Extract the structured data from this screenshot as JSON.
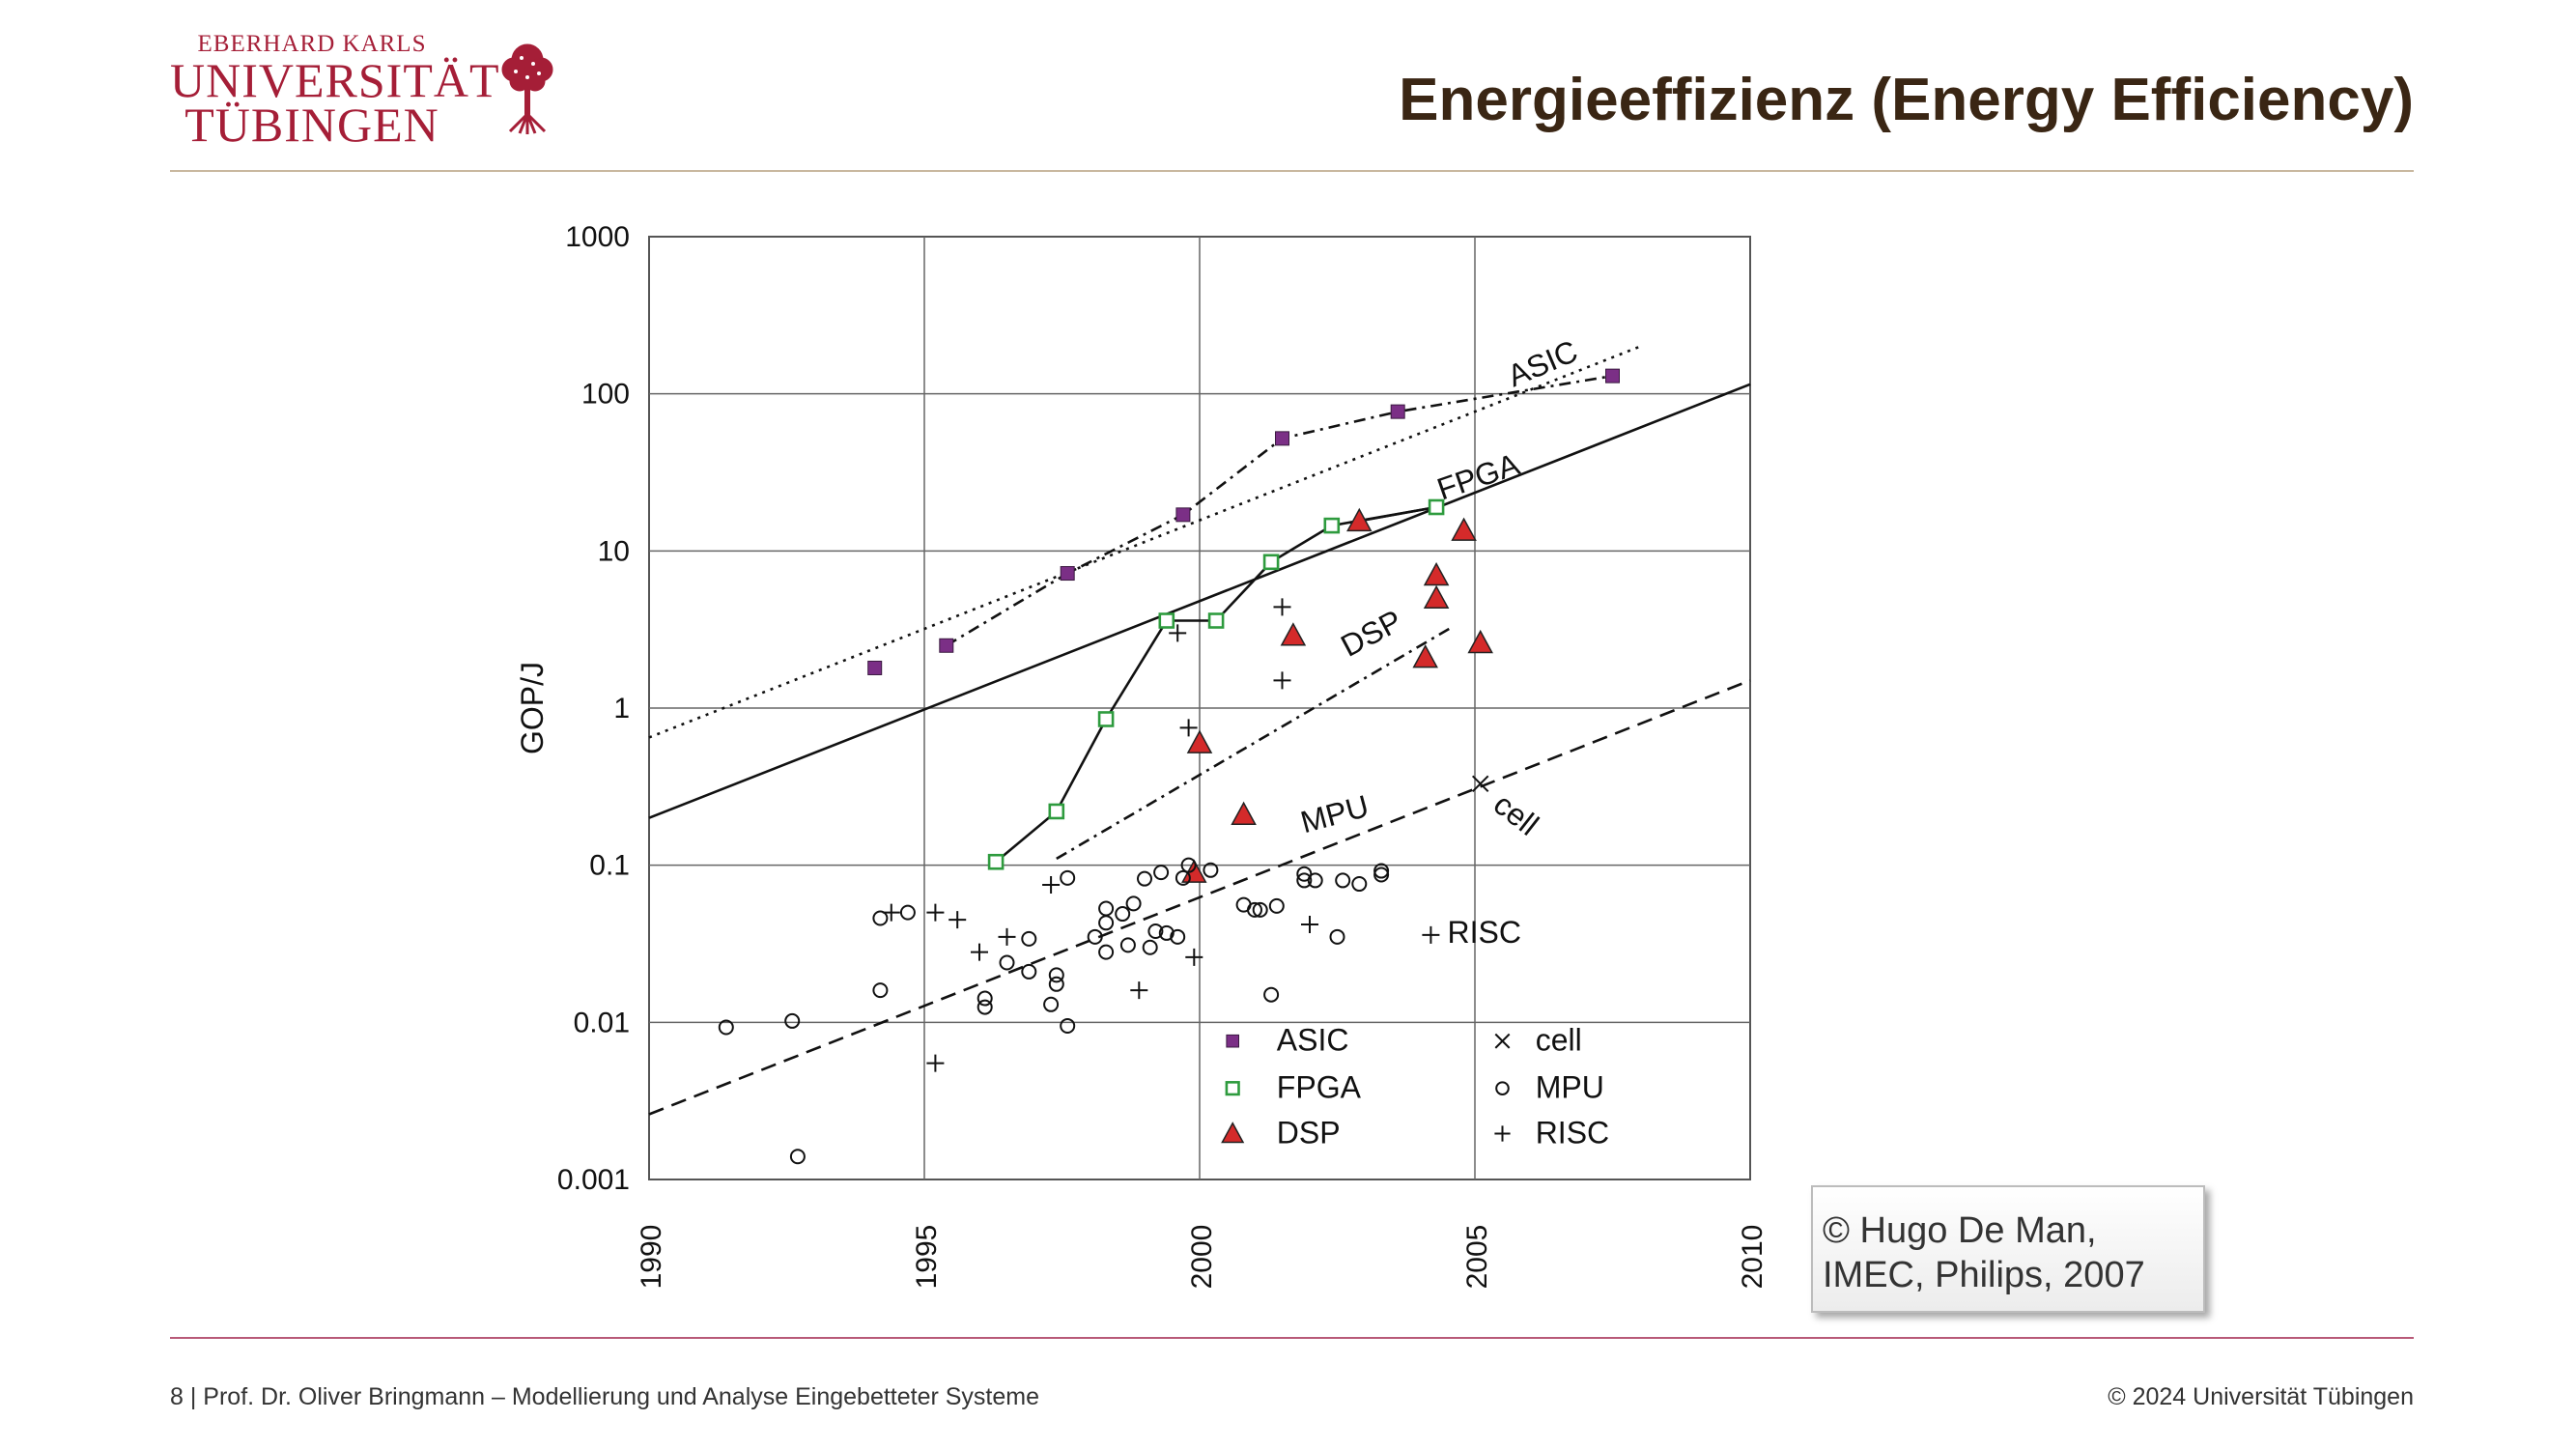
{
  "logo": {
    "top": "EBERHARD KARLS",
    "line1": "UNIVERSITÄT",
    "line2": "TÜBINGEN",
    "icon": "tree-icon"
  },
  "title": "Energieeffizienz (Energy Efficiency)",
  "footer": {
    "left": "8 | Prof. Dr. Oliver Bringmann – Modellierung und Analyse Eingebetteter Systeme",
    "right": "© 2024 Universität Tübingen"
  },
  "credit": {
    "line1": "© Hugo De Man,",
    "line2": "IMEC, Philips, 2007"
  },
  "colors": {
    "title": "#3a2614",
    "brand": "#a51e37",
    "asic": "#7b2f86",
    "fpga": "#2e9b3e",
    "dsp": "#d42a2a"
  },
  "chart_data": {
    "type": "scatter",
    "xlabel": "",
    "ylabel": "GOP/J",
    "xlim": [
      1990,
      2010
    ],
    "ylim": [
      0.001,
      1000
    ],
    "yscale": "log",
    "grid": true,
    "x_ticks": [
      "1990",
      "1995",
      "2000",
      "2005",
      "2010"
    ],
    "y_ticks": [
      "1000",
      "100",
      "10",
      "1",
      "0.1",
      "0.01",
      "0.001"
    ],
    "legend": [
      {
        "label": "ASIC",
        "marker": "filled-square"
      },
      {
        "label": "FPGA",
        "marker": "open-square"
      },
      {
        "label": "DSP",
        "marker": "triangle"
      },
      {
        "label": "cell",
        "marker": "x"
      },
      {
        "label": "MPU",
        "marker": "circle"
      },
      {
        "label": "RISC",
        "marker": "plus"
      }
    ],
    "legend_position": "bottom-right-inside",
    "series": [
      {
        "name": "ASIC",
        "marker": "filled-square",
        "points": [
          [
            1994.1,
            1.8
          ],
          [
            1995.4,
            2.5
          ],
          [
            1997.6,
            7.2
          ],
          [
            1999.7,
            17
          ],
          [
            2001.5,
            52
          ],
          [
            2003.6,
            77
          ],
          [
            2007.5,
            130
          ]
        ]
      },
      {
        "name": "FPGA",
        "marker": "open-square",
        "points": [
          [
            1996.3,
            0.105
          ],
          [
            1997.4,
            0.22
          ],
          [
            1998.3,
            0.85
          ],
          [
            1999.4,
            3.6
          ],
          [
            2000.3,
            3.6
          ],
          [
            2001.3,
            8.5
          ],
          [
            2002.4,
            14.5
          ],
          [
            2004.3,
            19
          ]
        ]
      },
      {
        "name": "DSP",
        "marker": "triangle",
        "points": [
          [
            2000,
            0.6
          ],
          [
            2000.8,
            0.21
          ],
          [
            2001.7,
            2.9
          ],
          [
            2002.9,
            15.5
          ],
          [
            2004.1,
            2.1
          ],
          [
            2004.3,
            7
          ],
          [
            2004.3,
            5
          ],
          [
            2004.8,
            13.5
          ],
          [
            2005.1,
            2.6
          ],
          [
            1999.9,
            0.09
          ]
        ]
      },
      {
        "name": "cell",
        "marker": "x",
        "points": [
          [
            2005.1,
            0.33
          ]
        ]
      },
      {
        "name": "MPU",
        "marker": "circle",
        "points": [
          [
            1991.4,
            0.0093
          ],
          [
            1992.6,
            0.0102
          ],
          [
            1992.7,
            0.0014
          ],
          [
            1994.2,
            0.046
          ],
          [
            1994.7,
            0.05
          ],
          [
            1994.2,
            0.016
          ],
          [
            1996.1,
            0.0125
          ],
          [
            1996.1,
            0.0142
          ],
          [
            1996.5,
            0.024
          ],
          [
            1996.9,
            0.034
          ],
          [
            1996.9,
            0.021
          ],
          [
            1997.4,
            0.02
          ],
          [
            1997.4,
            0.0175
          ],
          [
            1997.3,
            0.013
          ],
          [
            1997.6,
            0.0095
          ],
          [
            1997.6,
            0.083
          ],
          [
            1998.1,
            0.035
          ],
          [
            1998.3,
            0.028
          ],
          [
            1998.3,
            0.043
          ],
          [
            1998.3,
            0.053
          ],
          [
            1998.6,
            0.049
          ],
          [
            1998.7,
            0.031
          ],
          [
            1998.8,
            0.057
          ],
          [
            1999.0,
            0.082
          ],
          [
            1999.1,
            0.03
          ],
          [
            1999.2,
            0.038
          ],
          [
            1999.3,
            0.09
          ],
          [
            1999.4,
            0.037
          ],
          [
            1999.6,
            0.035
          ],
          [
            1999.7,
            0.083
          ],
          [
            1999.8,
            0.1
          ],
          [
            2000.2,
            0.093
          ],
          [
            2000.8,
            0.056
          ],
          [
            2001.0,
            0.052
          ],
          [
            2001.1,
            0.052
          ],
          [
            2001.4,
            0.055
          ],
          [
            2001.3,
            0.015
          ],
          [
            2001.9,
            0.088
          ],
          [
            2001.9,
            0.08
          ],
          [
            2002.1,
            0.08
          ],
          [
            2002.5,
            0.035
          ],
          [
            2002.6,
            0.08
          ],
          [
            2002.9,
            0.076
          ],
          [
            2003.3,
            0.087
          ],
          [
            2003.3,
            0.092
          ]
        ]
      },
      {
        "name": "RISC",
        "marker": "plus",
        "points": [
          [
            1994.4,
            0.05
          ],
          [
            1995.2,
            0.05
          ],
          [
            1995.6,
            0.045
          ],
          [
            1996.0,
            0.028
          ],
          [
            1996.5,
            0.035
          ],
          [
            1997.3,
            0.075
          ],
          [
            1995.2,
            0.0055
          ],
          [
            1998.9,
            0.016
          ],
          [
            1999.9,
            0.026
          ],
          [
            2002.0,
            0.042
          ],
          [
            2004.2,
            0.036
          ],
          [
            1999.8,
            0.75
          ],
          [
            1999.6,
            3.0
          ],
          [
            2001.5,
            4.4
          ],
          [
            2001.5,
            1.5
          ]
        ]
      }
    ],
    "trend_lines": [
      {
        "label": "ASIC",
        "style": "dotted",
        "from": [
          1990,
          0.65
        ],
        "to": [
          2008,
          200
        ]
      },
      {
        "label": "FPGA",
        "style": "solid",
        "from": [
          1990,
          0.2
        ],
        "to": [
          2010,
          115
        ]
      },
      {
        "label": "DSP",
        "style": "dash-dot",
        "from": [
          1997.4,
          0.11
        ],
        "to": [
          2004.6,
          3.3
        ]
      },
      {
        "label": "MPU",
        "style": "dashed",
        "from": [
          1990,
          0.0026
        ],
        "to": [
          2010,
          1.5
        ]
      }
    ],
    "connectors": [
      {
        "style": "dash-dot",
        "points": [
          [
            1995.4,
            2.5
          ],
          [
            1997.6,
            7.2
          ],
          [
            1999.7,
            17
          ],
          [
            2001.5,
            52
          ],
          [
            2003.6,
            77
          ],
          [
            2007.5,
            130
          ]
        ]
      },
      {
        "style": "solid",
        "points": [
          [
            1996.3,
            0.105
          ],
          [
            1997.4,
            0.22
          ],
          [
            1998.3,
            0.85
          ],
          [
            1999.4,
            3.6
          ],
          [
            2000.3,
            3.6
          ],
          [
            2001.3,
            8.5
          ],
          [
            2002.4,
            14.5
          ],
          [
            2004.3,
            19
          ]
        ]
      },
      {
        "style": "solid",
        "points": [
          [
            2002.9,
            15.5
          ],
          [
            2004.3,
            19
          ]
        ]
      }
    ],
    "annotations": [
      {
        "text": "ASIC",
        "x": 2005.7,
        "y": 110,
        "rotate": -23
      },
      {
        "text": "FPGA",
        "x": 2004.4,
        "y": 21,
        "rotate": -19
      },
      {
        "text": "DSP",
        "x": 2002.7,
        "y": 2.1,
        "rotate": -28
      },
      {
        "text": "MPU",
        "x": 2001.9,
        "y": 0.16,
        "rotate": -15
      },
      {
        "text": "cell",
        "x": 2005.3,
        "y": 0.23,
        "rotate": 38
      },
      {
        "text": "RISC",
        "x": 2004.5,
        "y": 0.032,
        "rotate": 0
      }
    ]
  }
}
